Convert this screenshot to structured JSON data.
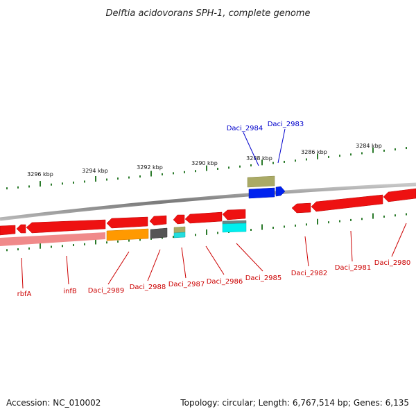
{
  "title": "Delftia acidovorans SPH-1, complete genome",
  "footer": {
    "accession": "Accession: NC_010002",
    "info": "Topology: circular; Length: 6,767,514 bp; Genes: 6,135"
  },
  "colors": {
    "backbone": "#808080",
    "ticks": "#2a7a2a",
    "plus_strand_label": "#0000cc",
    "minus_strand_label": "#cc0000"
  },
  "ruler": {
    "labels": [
      "3296 kbp",
      "3294 kbp",
      "3292 kbp",
      "3290 kbp",
      "3288 kbp",
      "3286 kbp",
      "3284 kbp"
    ]
  },
  "genes": [
    {
      "label": "rbfA",
      "strand": "minus",
      "color": "#ee1111"
    },
    {
      "label": "infB",
      "strand": "minus",
      "color": "#ee1111"
    },
    {
      "label": "Daci_2989",
      "strand": "minus",
      "color": "#ff9900"
    },
    {
      "label": "Daci_2988",
      "strand": "minus",
      "color": "#555555"
    },
    {
      "label": "Daci_2987",
      "strand": "minus",
      "color": "#22dddd"
    },
    {
      "label": "Daci_2986",
      "strand": "minus",
      "color": "#ee1111"
    },
    {
      "label": "Daci_2985",
      "strand": "minus",
      "color": "#00eeee"
    },
    {
      "label": "Daci_2984",
      "strand": "plus",
      "color": "#aaaa66"
    },
    {
      "label": "Daci_2983",
      "strand": "plus",
      "color": "#0022ee"
    },
    {
      "label": "Daci_2982",
      "strand": "minus",
      "color": "#ee1111"
    },
    {
      "label": "Daci_2981",
      "strand": "minus",
      "color": "#ee1111"
    },
    {
      "label": "Daci_2980",
      "strand": "minus",
      "color": "#ee1111"
    }
  ]
}
